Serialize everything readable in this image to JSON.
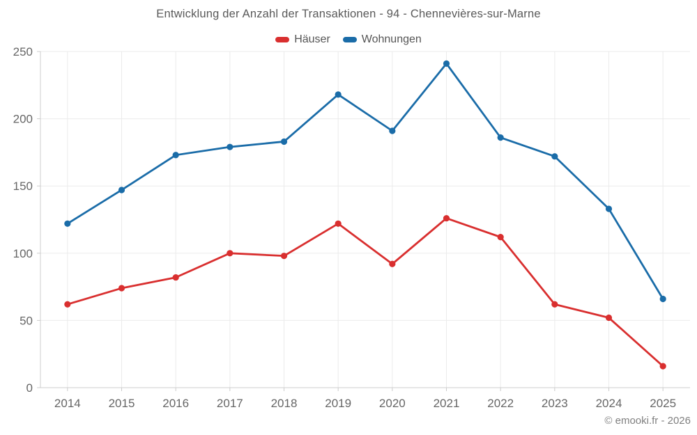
{
  "title": "Entwicklung der Anzahl der Transaktionen - 94 - Chennevières-sur-Marne",
  "legend": [
    {
      "label": "Häuser",
      "color": "#d92f2f"
    },
    {
      "label": "Wohnungen",
      "color": "#1a6ca8"
    }
  ],
  "footer": {
    "copyright": "© emooki.fr - 2026"
  },
  "colors": {
    "haeuser": "#d92f2f",
    "wohnungen": "#1a6ca8",
    "grid": "#ebebeb",
    "axis": "#cccccc",
    "tick_label": "#666666",
    "title_text": "#595959"
  },
  "chart_data": {
    "type": "line",
    "x": [
      "2014",
      "2015",
      "2016",
      "2017",
      "2018",
      "2019",
      "2020",
      "2021",
      "2022",
      "2023",
      "2024",
      "2025"
    ],
    "series": [
      {
        "name": "Häuser",
        "color": "#d92f2f",
        "values": [
          62,
          74,
          82,
          100,
          98,
          122,
          92,
          126,
          112,
          62,
          52,
          16
        ]
      },
      {
        "name": "Wohnungen",
        "color": "#1a6ca8",
        "values": [
          122,
          147,
          173,
          179,
          183,
          218,
          191,
          241,
          186,
          172,
          133,
          66
        ]
      }
    ],
    "title": "Entwicklung der Anzahl der Transaktionen - 94 - Chennevières-sur-Marne",
    "xlabel": "",
    "ylabel": "",
    "yticks": [
      0,
      50,
      100,
      150,
      200,
      250
    ],
    "ylim": [
      0,
      250
    ],
    "grid": true,
    "legend_position": "top",
    "marker": "circle"
  }
}
